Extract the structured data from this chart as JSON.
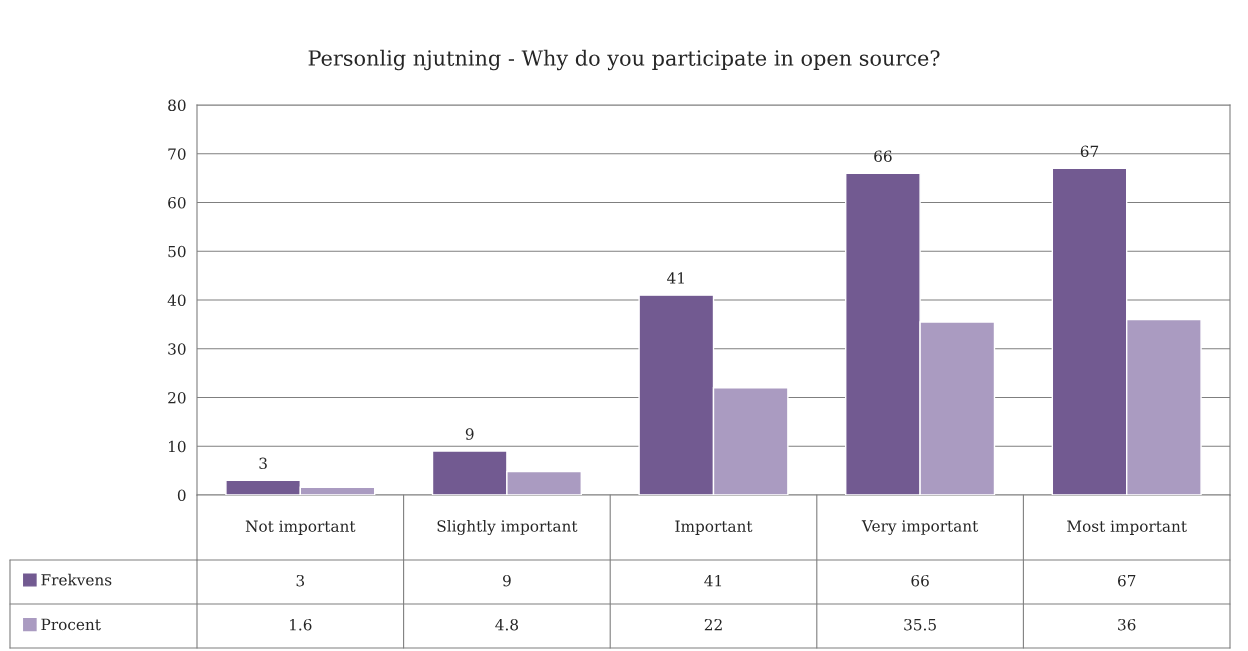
{
  "chart_data": {
    "type": "bar",
    "title": "Personlig njutning - Why do you participate in open source?",
    "categories": [
      "Not important",
      "Slightly important",
      "Important",
      "Very important",
      "Most important"
    ],
    "series": [
      {
        "name": "Frekvens",
        "color": "#725a91",
        "values": [
          3,
          9,
          41,
          66,
          67
        ]
      },
      {
        "name": "Procent",
        "color": "#aa9bc1",
        "values": [
          1.6,
          4.8,
          22,
          35.5,
          36
        ]
      }
    ],
    "annotations": [
      {
        "text": "3",
        "x": "Not important",
        "y": 3
      },
      {
        "text": "9",
        "x": "Slightly important",
        "y": 9
      },
      {
        "text": "41",
        "x": "Important",
        "y": 41
      },
      {
        "text": "66",
        "x": "Very important",
        "y": 66
      },
      {
        "text": "67",
        "x": "Most important",
        "y": 67
      }
    ],
    "ylim": [
      0,
      80
    ],
    "yticks": [
      0,
      10,
      20,
      30,
      40,
      50,
      60,
      70,
      80
    ],
    "grid": "y",
    "legend": "bottom",
    "data_labels": true
  }
}
